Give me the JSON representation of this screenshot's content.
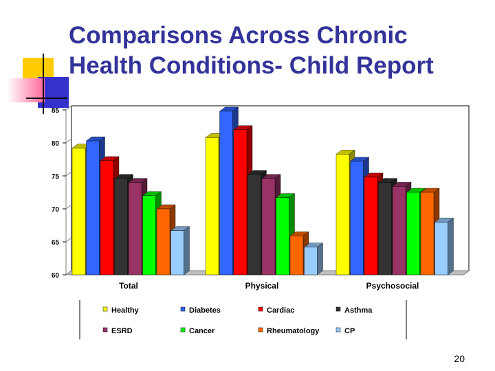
{
  "slide": {
    "title_line1": "Comparisons Across Chronic",
    "title_line2": "Health Conditions- Child Report",
    "page_number": "20"
  },
  "chart_data": {
    "type": "bar",
    "categories": [
      "Total",
      "Physical",
      "Psychosocial"
    ],
    "ylim": [
      60,
      85
    ],
    "yticks": [
      "60",
      "65",
      "70",
      "75",
      "80",
      "85"
    ],
    "grid": false,
    "legend_position": "bottom",
    "series": [
      {
        "name": "Healthy",
        "color": "#ffff00",
        "values": [
          79.2,
          80.8,
          78.3
        ]
      },
      {
        "name": "Diabetes",
        "color": "#3366ff",
        "values": [
          80.3,
          84.8,
          77.2
        ]
      },
      {
        "name": "Cardiac",
        "color": "#ff0000",
        "values": [
          77.3,
          82.0,
          74.8
        ]
      },
      {
        "name": "Asthma",
        "color": "#333333",
        "values": [
          74.6,
          75.2,
          74.0
        ]
      },
      {
        "name": "ESRD",
        "color": "#993366",
        "values": [
          74.0,
          74.6,
          73.4
        ]
      },
      {
        "name": "Cancer",
        "color": "#00ff00",
        "values": [
          72.0,
          71.7,
          72.5
        ]
      },
      {
        "name": "Rheumatology",
        "color": "#ff6600",
        "values": [
          70.0,
          65.9,
          72.5
        ]
      },
      {
        "name": "CP",
        "color": "#99ccff",
        "values": [
          66.7,
          64.2,
          68.0
        ]
      }
    ]
  }
}
